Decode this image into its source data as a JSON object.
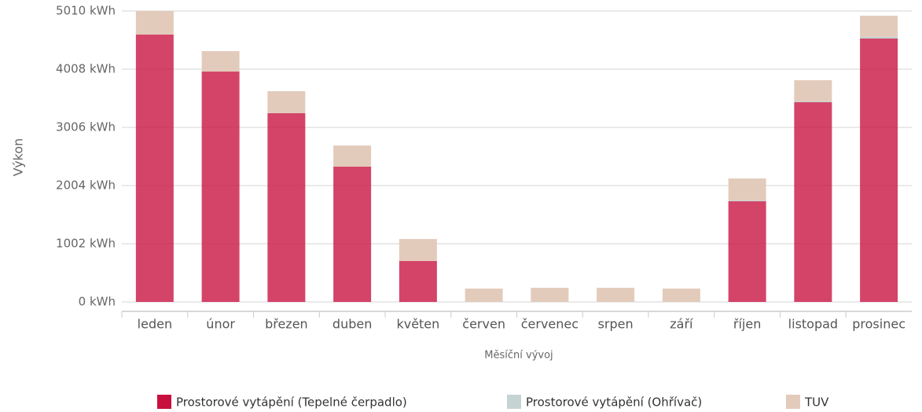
{
  "chart_data": {
    "type": "stacked_bar",
    "categories": [
      "leden",
      "únor",
      "březen",
      "duben",
      "květen",
      "červen",
      "červenec",
      "srpen",
      "září",
      "říjen",
      "listopad",
      "prosinec"
    ],
    "series": [
      {
        "name": "Prostorové vytápění (Tepelné čerpadlo)",
        "color": "#c8103e",
        "values": [
          4604,
          3967,
          3250,
          2329,
          704,
          0,
          0,
          0,
          0,
          1733,
          3439,
          4536
        ]
      },
      {
        "name": "Prostorové vytápění (Ohřívač)",
        "color": "#c5d3d3",
        "values": [
          0,
          0,
          0,
          0,
          0,
          0,
          0,
          0,
          0,
          14,
          14,
          27
        ]
      },
      {
        "name": "TUV",
        "color": "#e3cbbb",
        "values": [
          406,
          352,
          379,
          365,
          379,
          230,
          244,
          244,
          230,
          379,
          365,
          366
        ]
      }
    ],
    "ylim": [
      0,
      5010
    ],
    "yticks": [
      {
        "value": 0,
        "label": "0 kWh"
      },
      {
        "value": 1002,
        "label": "1002 kWh"
      },
      {
        "value": 2004,
        "label": "2004 kWh"
      },
      {
        "value": 3006,
        "label": "3006 kWh"
      },
      {
        "value": 4008,
        "label": "4008 kWh"
      },
      {
        "value": 5010,
        "label": "5010 kWh"
      }
    ],
    "y_label": "Výkon",
    "x_label": "Měsíční vývoj",
    "grid": true
  }
}
